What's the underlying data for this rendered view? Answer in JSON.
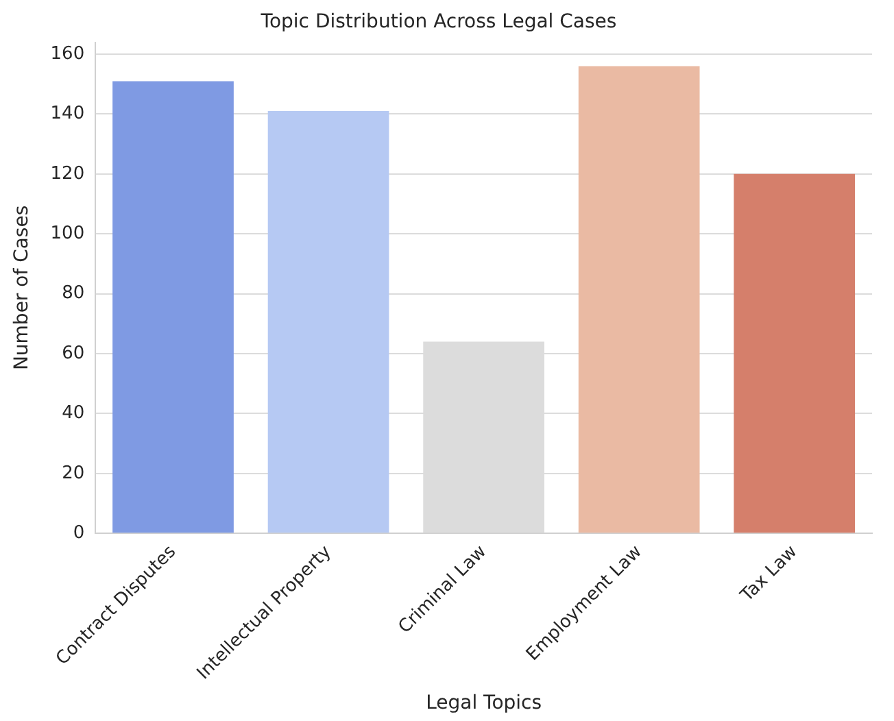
{
  "chart_data": {
    "type": "bar",
    "title": "Topic Distribution Across Legal Cases",
    "xlabel": "Legal Topics",
    "ylabel": "Number of Cases",
    "categories": [
      "Contract Disputes",
      "Intellectual Property",
      "Criminal Law",
      "Employment Law",
      "Tax Law"
    ],
    "values": [
      151,
      141,
      64,
      156,
      120
    ],
    "colors": [
      "#7f9ae3",
      "#b6c9f3",
      "#dcdcdc",
      "#eabaa3",
      "#d57f6b"
    ],
    "ylim": [
      0,
      164
    ],
    "yticks": [
      0,
      20,
      40,
      60,
      80,
      100,
      120,
      140,
      160
    ],
    "grid": "y"
  }
}
